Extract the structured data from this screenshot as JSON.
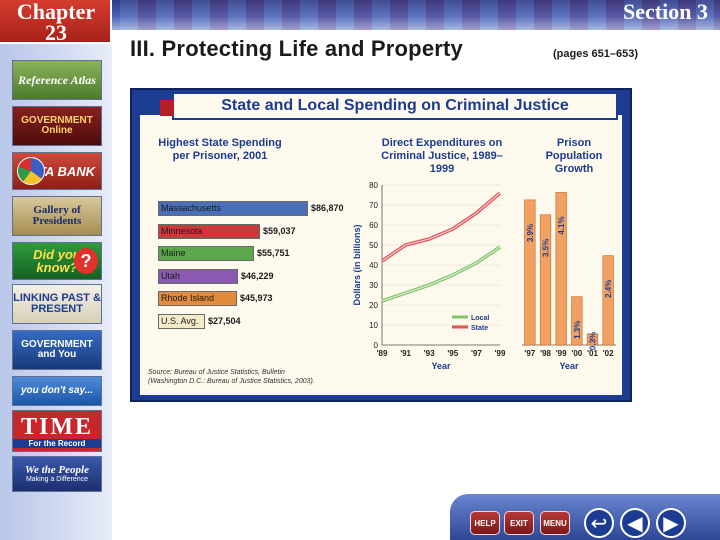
{
  "header": {
    "chapter_label": "Chapter",
    "chapter_number": "23",
    "section_label": "Section 3"
  },
  "title": {
    "heading": "III. Protecting Life and Property",
    "pages": "(pages 651–653)"
  },
  "sidebar": {
    "items": [
      {
        "label": "Reference Atlas",
        "icon": "atlas-icon"
      },
      {
        "label": "GOVERNMENT Online",
        "icon": "globe-icon"
      },
      {
        "label": "DATA BANK",
        "icon": "pie-chart-icon"
      },
      {
        "label": "Gallery of Presidents",
        "icon": "portrait-icon"
      },
      {
        "label": "Did you know?",
        "icon": "question-icon"
      },
      {
        "label": "LINKING PAST & PRESENT",
        "icon": "link-icon"
      },
      {
        "label": "GOVERNMENT and You",
        "icon": "stars-icon"
      },
      {
        "label": "you don't say...",
        "icon": "speech-icon"
      },
      {
        "label": "TIME",
        "sub": "For the Record",
        "icon": "time-logo-icon"
      },
      {
        "label": "We the People",
        "sub": "Making a Difference",
        "icon": "people-icon"
      }
    ]
  },
  "figure": {
    "banner": "State and Local Spending on Criminal Justice",
    "source_line1": "Source: Bureau of Justice Statistics, Bulletin",
    "source_line2": "(Washington D.C.: Bureau of Justice Statistics, 2003)."
  },
  "chart_data": [
    {
      "type": "bar",
      "orientation": "horizontal",
      "title": "Highest State Spending per Prisoner, 2001",
      "categories": [
        "Massachusetts",
        "Minnesota",
        "Maine",
        "Utah",
        "Rhode Island",
        "U.S. Avg."
      ],
      "values": [
        86870,
        59037,
        55751,
        46229,
        45973,
        27504
      ],
      "value_labels": [
        "$86,870",
        "$59,037",
        "$55,751",
        "$46,229",
        "$45,973",
        "$27,504"
      ],
      "colors": [
        "#4a6fb8",
        "#c93a3a",
        "#5aa84a",
        "#8a5ab0",
        "#e28b3c",
        "#f4ecc9"
      ]
    },
    {
      "type": "line",
      "title": "Direct Expenditures on Criminal Justice, 1989–1999",
      "x": [
        1989,
        1991,
        1993,
        1995,
        1997,
        1999
      ],
      "x_tick_labels": [
        "'89",
        "'91",
        "'93",
        "'95",
        "'97",
        "'99"
      ],
      "xlabel": "Year",
      "ylabel": "Dollars (in billions)",
      "ylim": [
        0,
        80
      ],
      "y_ticks": [
        0,
        10,
        20,
        30,
        40,
        50,
        60,
        70,
        80
      ],
      "series": [
        {
          "name": "Local",
          "values": [
            22,
            26,
            30,
            35,
            41,
            49
          ],
          "color": "#7fc46a"
        },
        {
          "name": "State",
          "values": [
            42,
            50,
            53,
            58,
            66,
            76
          ],
          "color": "#e0555a"
        }
      ],
      "legend": "bottom-right"
    },
    {
      "type": "bar",
      "title": "Prison Population Growth",
      "categories": [
        "'97",
        "'98",
        "'99",
        "'00",
        "'01",
        "'02"
      ],
      "values": [
        3.9,
        3.5,
        4.1,
        1.3,
        0.3,
        2.4
      ],
      "value_labels": [
        "3.9%",
        "3.5%",
        "4.1%",
        "1.3%",
        "0.3%",
        "2.4%"
      ],
      "xlabel": "Year",
      "ylim": [
        0,
        4.3
      ],
      "color": "#f2a163"
    }
  ],
  "footer": {
    "help": "HELP",
    "exit": "EXIT",
    "menu": "MENU"
  }
}
